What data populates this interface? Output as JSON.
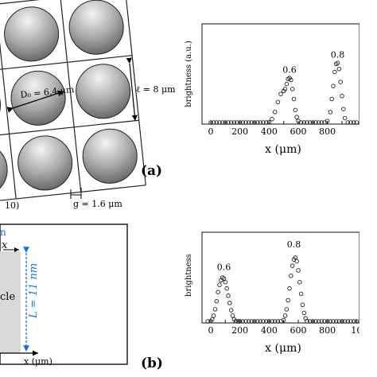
{
  "figure": {
    "panel_a_label": "(a)",
    "panel_b_label": "(b)",
    "diameter_label": "D₀ = 6.4 μm",
    "period_label": "ℓ = 8 μm",
    "gap_label": "g = 1.6 μm",
    "partial_label": "10)",
    "length_label": "L = 11 nm",
    "axis_x_arrow_label": "x",
    "x_axis_bottom_label": "x (μm)",
    "partial_particle_text": "cle",
    "partial_top_text": "n"
  },
  "chart_data": [
    {
      "type": "scatter",
      "ylabel": "brightness (a.u.)",
      "xlabel": "x (μm)",
      "xlim": [
        -60,
        1020
      ],
      "ylim": [
        0,
        1
      ],
      "xticks": [
        "0",
        "100",
        "200",
        "300",
        "400",
        "500",
        "600",
        "700",
        "800",
        "900"
      ],
      "grid": false,
      "annotations": [
        {
          "text": "0.6",
          "x": 540,
          "y": 0.48
        },
        {
          "text": "0.8",
          "x": 870,
          "y": 0.63
        }
      ],
      "x": [
        0,
        20,
        40,
        60,
        80,
        100,
        120,
        140,
        160,
        180,
        200,
        220,
        240,
        260,
        280,
        300,
        320,
        340,
        360,
        380,
        400,
        420,
        440,
        460,
        480,
        500,
        510,
        520,
        530,
        540,
        550,
        560,
        570,
        580,
        590,
        600,
        620,
        640,
        660,
        680,
        700,
        720,
        740,
        760,
        780,
        800,
        820,
        830,
        840,
        850,
        860,
        870,
        880,
        890,
        900,
        910,
        920,
        940,
        960,
        980,
        1000
      ],
      "y": [
        0.0,
        0.0,
        0.0,
        0.0,
        0.0,
        0.0,
        0.0,
        0.0,
        0.0,
        0.0,
        0.0,
        0.0,
        0.0,
        0.0,
        0.0,
        0.0,
        0.0,
        0.0,
        0.0,
        0.0,
        0.02,
        0.05,
        0.12,
        0.22,
        0.3,
        0.33,
        0.35,
        0.4,
        0.45,
        0.46,
        0.44,
        0.35,
        0.25,
        0.14,
        0.07,
        0.03,
        0.0,
        0.0,
        0.0,
        0.0,
        0.0,
        0.0,
        0.0,
        0.0,
        0.0,
        0.03,
        0.12,
        0.25,
        0.38,
        0.52,
        0.6,
        0.61,
        0.55,
        0.42,
        0.28,
        0.15,
        0.06,
        0.01,
        0.0,
        0.0,
        0.0
      ]
    },
    {
      "type": "scatter",
      "ylabel": "brightness",
      "xlabel": "x (μm)",
      "xlim": [
        -60,
        1020
      ],
      "ylim": [
        0,
        1
      ],
      "xticks": [
        "0",
        "100",
        "200",
        "300",
        "400",
        "500",
        "600",
        "700",
        "800",
        "900",
        "10"
      ],
      "grid": false,
      "annotations": [
        {
          "text": "0.6",
          "x": 90,
          "y": 0.55
        },
        {
          "text": "0.8",
          "x": 570,
          "y": 0.8
        }
      ],
      "x": [
        -20,
        0,
        10,
        20,
        30,
        40,
        50,
        60,
        70,
        80,
        90,
        100,
        110,
        120,
        130,
        140,
        150,
        160,
        170,
        180,
        190,
        200,
        220,
        240,
        260,
        280,
        300,
        320,
        340,
        360,
        380,
        400,
        420,
        440,
        460,
        480,
        500,
        510,
        520,
        530,
        540,
        550,
        560,
        570,
        580,
        590,
        600,
        610,
        620,
        630,
        640,
        650,
        660,
        680,
        700,
        720,
        740,
        760,
        780,
        800,
        820,
        840,
        860,
        880,
        900,
        920,
        940,
        960,
        980,
        1000
      ],
      "y": [
        0.0,
        0.02,
        0.04,
        0.08,
        0.15,
        0.24,
        0.34,
        0.42,
        0.47,
        0.5,
        0.49,
        0.45,
        0.38,
        0.3,
        0.22,
        0.14,
        0.08,
        0.04,
        0.02,
        0.0,
        0.0,
        0.0,
        0.0,
        0.0,
        0.0,
        0.0,
        0.0,
        0.0,
        0.0,
        0.0,
        0.0,
        0.0,
        0.0,
        0.0,
        0.0,
        0.0,
        0.03,
        0.08,
        0.15,
        0.25,
        0.38,
        0.52,
        0.63,
        0.7,
        0.72,
        0.68,
        0.58,
        0.45,
        0.32,
        0.2,
        0.11,
        0.05,
        0.02,
        0.0,
        0.0,
        0.0,
        0.0,
        0.0,
        0.0,
        0.0,
        0.0,
        0.0,
        0.0,
        0.0,
        0.0,
        0.0,
        0.0,
        0.0,
        0.0,
        0.0
      ]
    }
  ]
}
